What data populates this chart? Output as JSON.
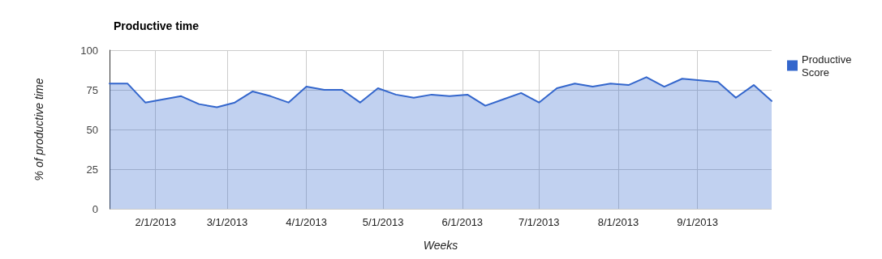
{
  "chart_data": {
    "type": "area",
    "title": "Productive time",
    "xlabel": "Weeks",
    "ylabel": "% of productive time",
    "x": [
      "2013-01-14",
      "2013-01-21",
      "2013-01-28",
      "2013-02-04",
      "2013-02-11",
      "2013-02-18",
      "2013-02-25",
      "2013-03-04",
      "2013-03-11",
      "2013-03-18",
      "2013-03-25",
      "2013-04-01",
      "2013-04-08",
      "2013-04-15",
      "2013-04-22",
      "2013-04-29",
      "2013-05-06",
      "2013-05-13",
      "2013-05-20",
      "2013-05-27",
      "2013-06-03",
      "2013-06-10",
      "2013-06-17",
      "2013-06-24",
      "2013-07-01",
      "2013-07-08",
      "2013-07-15",
      "2013-07-22",
      "2013-07-29",
      "2013-08-05",
      "2013-08-12",
      "2013-08-19",
      "2013-08-26",
      "2013-09-02",
      "2013-09-09",
      "2013-09-16",
      "2013-09-23",
      "2013-09-30"
    ],
    "series": [
      {
        "name": "Productive Score",
        "color": "#3366cc",
        "values": [
          79,
          79,
          67,
          69,
          71,
          66,
          64,
          67,
          74,
          71,
          67,
          77,
          75,
          75,
          67,
          76,
          72,
          70,
          72,
          71,
          72,
          65,
          69,
          73,
          67,
          76,
          79,
          77,
          79,
          78,
          83,
          77,
          82,
          81,
          80,
          70,
          78,
          68
        ]
      }
    ],
    "xlim": [
      "2013-01-14",
      "2013-09-30"
    ],
    "xticks": [
      {
        "value": "2013-02-01",
        "label": "2/1/2013"
      },
      {
        "value": "2013-03-01",
        "label": "3/1/2013"
      },
      {
        "value": "2013-04-01",
        "label": "4/1/2013"
      },
      {
        "value": "2013-05-01",
        "label": "5/1/2013"
      },
      {
        "value": "2013-06-01",
        "label": "6/1/2013"
      },
      {
        "value": "2013-07-01",
        "label": "7/1/2013"
      },
      {
        "value": "2013-08-01",
        "label": "8/1/2013"
      },
      {
        "value": "2013-09-01",
        "label": "9/1/2013"
      }
    ],
    "ylim": [
      0,
      100
    ],
    "yticks": [
      0,
      25,
      50,
      75,
      100
    ],
    "grid": true,
    "legend": "right",
    "marker": "none",
    "line_style": "solid"
  }
}
